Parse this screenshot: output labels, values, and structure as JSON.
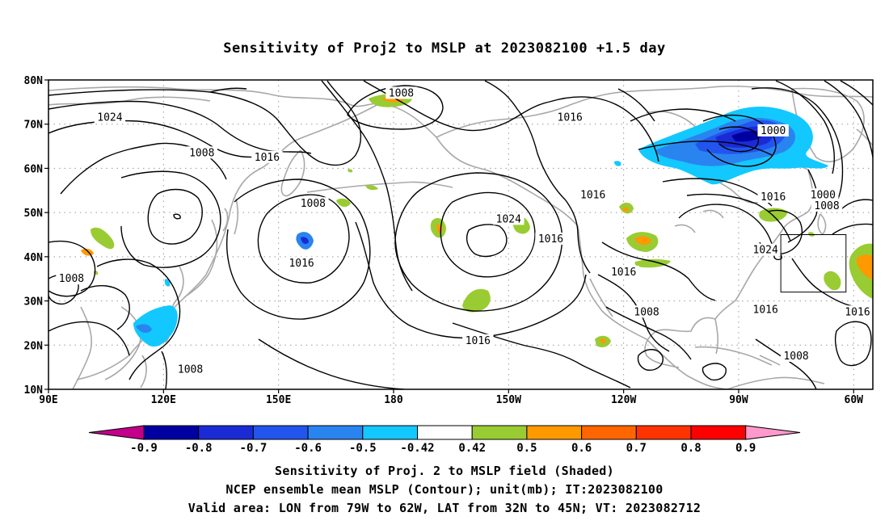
{
  "title": "Sensitivity of Proj2 to MSLP at 2023082100 +1.5 day",
  "map": {
    "lon_range": [
      90,
      305
    ],
    "lat_range": [
      10,
      80
    ],
    "lat_labels": [
      {
        "lat": 80,
        "label": "80N"
      },
      {
        "lat": 70,
        "label": "70N"
      },
      {
        "lat": 60,
        "label": "60N"
      },
      {
        "lat": 50,
        "label": "50N"
      },
      {
        "lat": 40,
        "label": "40N"
      },
      {
        "lat": 30,
        "label": "30N"
      },
      {
        "lat": 20,
        "label": "20N"
      },
      {
        "lat": 10,
        "label": "10N"
      }
    ],
    "lon_labels": [
      {
        "lon": 90,
        "label": "90E"
      },
      {
        "lon": 120,
        "label": "120E"
      },
      {
        "lon": 150,
        "label": "150E"
      },
      {
        "lon": 180,
        "label": "180"
      },
      {
        "lon": 210,
        "label": "150W"
      },
      {
        "lon": 240,
        "label": "120W"
      },
      {
        "lon": 270,
        "label": "90W"
      },
      {
        "lon": 300,
        "label": "60W"
      }
    ],
    "contour_labels": [
      {
        "text": "1008",
        "lon": 182,
        "lat": 77
      },
      {
        "text": "1024",
        "lon": 106,
        "lat": 71.5
      },
      {
        "text": "1016",
        "lon": 226,
        "lat": 71.5
      },
      {
        "text": "1000",
        "lon": 279,
        "lat": 68.5
      },
      {
        "text": "1008",
        "lon": 130,
        "lat": 63.5
      },
      {
        "text": "1016",
        "lon": 147,
        "lat": 62.5
      },
      {
        "text": "1008",
        "lon": 159,
        "lat": 52
      },
      {
        "text": "1016",
        "lon": 232,
        "lat": 54
      },
      {
        "text": "1016",
        "lon": 279,
        "lat": 53.5
      },
      {
        "text": "1000",
        "lon": 292,
        "lat": 54
      },
      {
        "text": "1008",
        "lon": 293,
        "lat": 51.5
      },
      {
        "text": "1024",
        "lon": 210,
        "lat": 48.5
      },
      {
        "text": "1016",
        "lon": 221,
        "lat": 44
      },
      {
        "text": "1024",
        "lon": 277,
        "lat": 41.5
      },
      {
        "text": "1016",
        "lon": 156,
        "lat": 38.5
      },
      {
        "text": "1016",
        "lon": 240,
        "lat": 36.5
      },
      {
        "text": "1008",
        "lon": 96,
        "lat": 35
      },
      {
        "text": "1008",
        "lon": 246,
        "lat": 27.5
      },
      {
        "text": "1016",
        "lon": 277,
        "lat": 28
      },
      {
        "text": "1016",
        "lon": 301,
        "lat": 27.5
      },
      {
        "text": "1016",
        "lon": 202,
        "lat": 21
      },
      {
        "text": "1008",
        "lon": 285,
        "lat": 17.5
      },
      {
        "text": "1008",
        "lon": 127,
        "lat": 14.5
      }
    ],
    "valid_area": {
      "lon_west": 281,
      "lon_east": 298,
      "lat_south": 32,
      "lat_north": 45
    }
  },
  "colorbar": {
    "labels": [
      "-0.9",
      "-0.8",
      "-0.7",
      "-0.6",
      "-0.5",
      "-0.42",
      "0.42",
      "0.5",
      "0.6",
      "0.7",
      "0.8",
      "0.9"
    ],
    "colors": [
      "#0000a0",
      "#1a2bd6",
      "#2255ee",
      "#2a84f0",
      "#12c8ff",
      "#ffffff",
      "#99cc33",
      "#ff9900",
      "#ff6600",
      "#ff3300",
      "#ff0000"
    ],
    "left_end_color": "#c4008a",
    "right_end_color": "#ff99cc"
  },
  "captions": [
    "Sensitivity of Proj. 2 to MSLP field (Shaded)",
    "NCEP ensemble mean MSLP (Contour); unit(mb); IT:2023082100",
    "Valid area: LON from 79W to 62W, LAT from 32N to 45N; VT: 2023082712"
  ]
}
